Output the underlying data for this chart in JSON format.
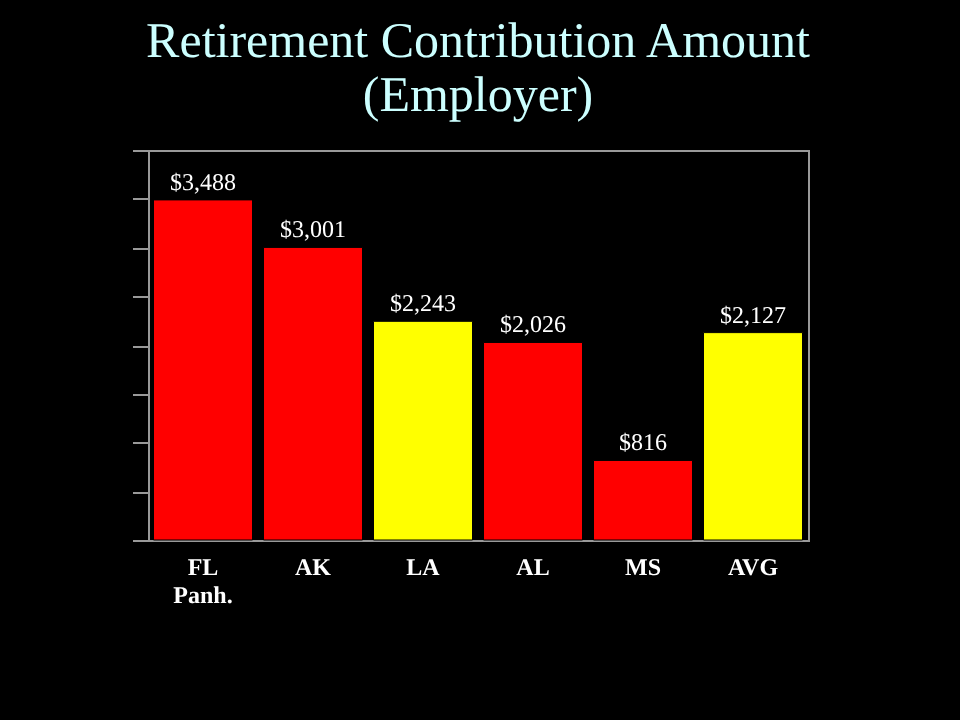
{
  "chart_data": {
    "type": "bar",
    "title": [
      "Retirement Contribution Amount",
      "(Employer)"
    ],
    "categories": [
      "FL Panh.",
      "AK",
      "LA",
      "AL",
      "MS",
      "AVG"
    ],
    "values": [
      3488,
      3001,
      2243,
      2026,
      816,
      2127
    ],
    "colors": [
      "#ff0000",
      "#ff0000",
      "#ffff00",
      "#ff0000",
      "#ff0000",
      "#ffff00"
    ],
    "value_labels": [
      "$3,488",
      "$3,001",
      "$2,243",
      "$2,026",
      "$816",
      "$2,127"
    ],
    "ylim": [
      0,
      4000
    ],
    "tick_labels": "x",
    "grid": false,
    "legend": false
  }
}
